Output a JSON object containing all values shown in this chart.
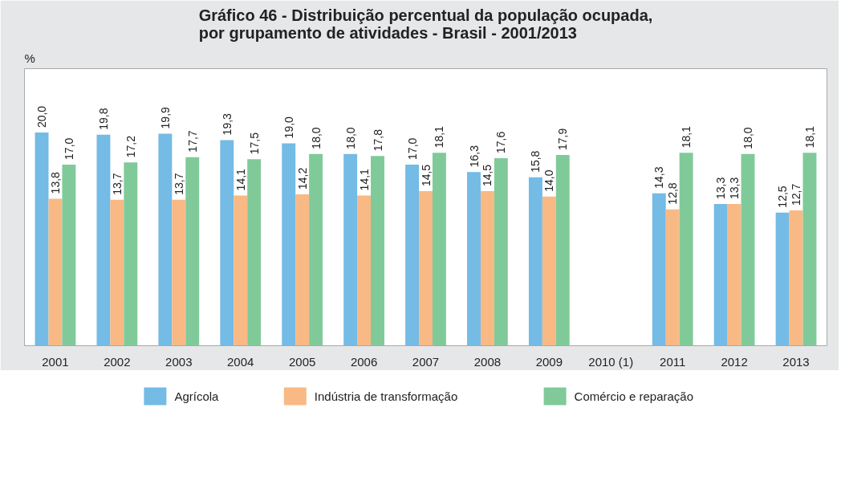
{
  "chart_data": {
    "type": "bar",
    "title": "Gráfico 46 - Distribuição percentual da população ocupada,\npor grupamento de atividades - Brasil - 2001/2013",
    "annotations": [
      "%"
    ],
    "categories": [
      "2001",
      "2002",
      "2003",
      "2004",
      "2005",
      "2006",
      "2007",
      "2008",
      "2009",
      "2010 (1)",
      "2011",
      "2012",
      "2013"
    ],
    "series": [
      {
        "name": "Agrícola",
        "color": "#74bbe6",
        "values": [
          20.0,
          19.8,
          19.9,
          19.3,
          19.0,
          18.0,
          17.0,
          16.3,
          15.8,
          null,
          14.3,
          13.3,
          12.5
        ],
        "value_labels": [
          "20,0",
          "19,8",
          "19,9",
          "19,3",
          "19,0",
          "18,0",
          "17,0",
          "16,3",
          "15,8",
          null,
          "14,3",
          "13,3",
          "12,5"
        ]
      },
      {
        "name": "Indústria de transformação",
        "color": "#f8b985",
        "values": [
          13.8,
          13.7,
          13.7,
          14.1,
          14.2,
          14.1,
          14.5,
          14.5,
          14.0,
          null,
          12.8,
          13.3,
          12.7
        ],
        "value_labels": [
          "13,8",
          "13,7",
          "13,7",
          "14,1",
          "14,2",
          "14,1",
          "14,5",
          "14,5",
          "14,0",
          null,
          "12,8",
          "13,3",
          "12,7"
        ]
      },
      {
        "name": "Comércio e reparação",
        "color": "#80ca9a",
        "values": [
          17.0,
          17.2,
          17.7,
          17.5,
          18.0,
          17.8,
          18.1,
          17.6,
          17.9,
          null,
          18.1,
          18.0,
          18.1
        ],
        "value_labels": [
          "17,0",
          "17,2",
          "17,7",
          "17,5",
          "18,0",
          "17,8",
          "18,1",
          "17,6",
          "17,9",
          null,
          "18,1",
          "18,0",
          "18,1"
        ]
      }
    ],
    "legend": "bottom"
  }
}
